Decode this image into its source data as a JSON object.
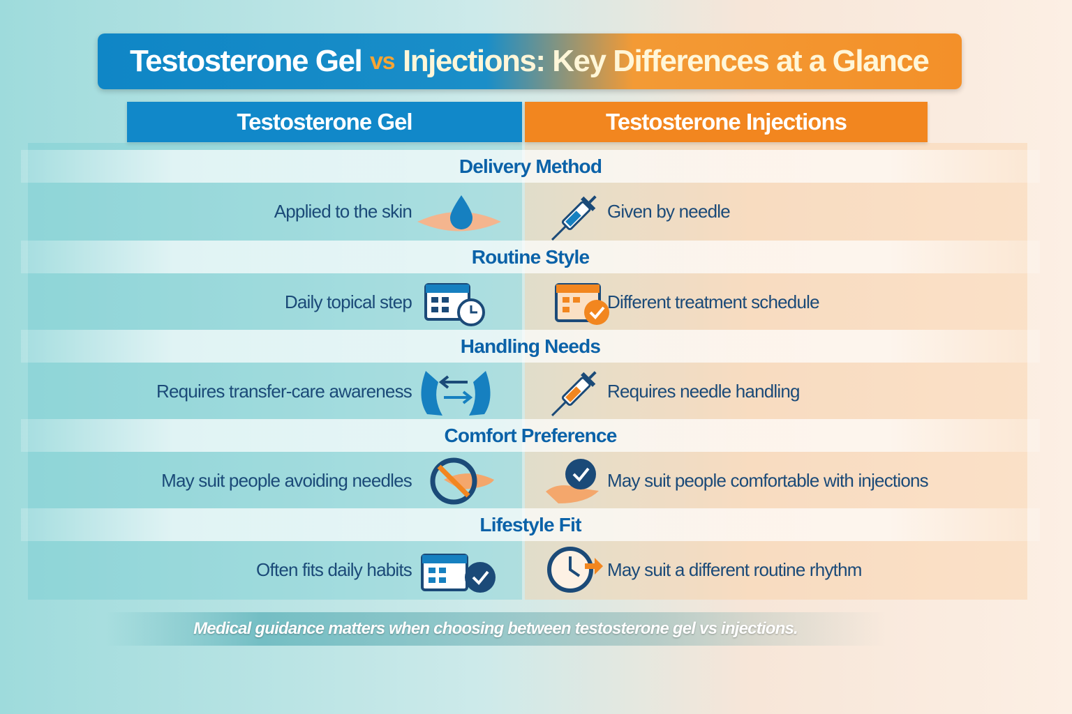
{
  "header": {
    "title_left": "Testosterone Gel",
    "title_connector": "vs",
    "title_right": "Injections: Key Differences at a Glance"
  },
  "columns": [
    "Testosterone Gel",
    "Testosterone Injections"
  ],
  "rows": [
    {
      "category": "Delivery Method",
      "gel": "Applied to the skin",
      "injections": "Given by needle"
    },
    {
      "category": "Routine Style",
      "gel": "Daily topical step",
      "injections": "Different treatment schedule"
    },
    {
      "category": "Handling Needs",
      "gel": "Requires transfer-care awareness",
      "injections": "Requires needle handling"
    },
    {
      "category": "Comfort Preference",
      "gel": "May suit people avoiding needles",
      "injections": "May suit people comfortable with injections"
    },
    {
      "category": "Lifestyle Fit",
      "gel": "Often fits daily habits",
      "injections": "May suit a different routine rhythm"
    }
  ],
  "footer": {
    "note": "Medical guidance matters when choosing between testosterone gel vs injections."
  }
}
